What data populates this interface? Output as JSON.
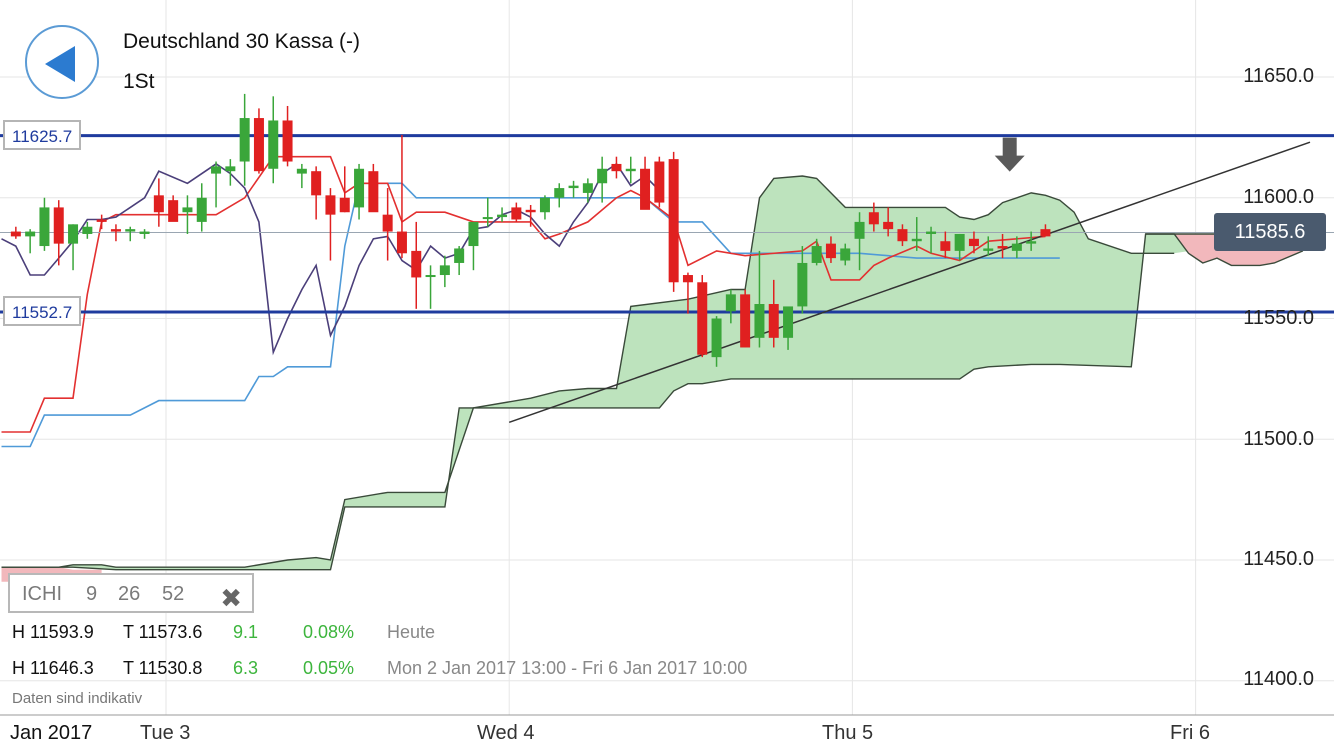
{
  "header": {
    "instrument": "Deutschland 30 Kassa (-)",
    "interval": "1St",
    "back_icon": "back-arrow-icon"
  },
  "levels": {
    "upper_label": "11625.7",
    "lower_label": "11552.7",
    "current_label": "11585.6"
  },
  "indicator": {
    "name": "ICHI",
    "p1": "9",
    "p2": "26",
    "p3": "52",
    "close_icon": "close-icon"
  },
  "stats": {
    "row1": {
      "high": "H 11593.9",
      "low": "T 11573.6",
      "change": "9.1",
      "pct": "0.08%",
      "period": "Heute"
    },
    "row2": {
      "high": "H 11646.3",
      "low": "T 11530.8",
      "change": "6.3",
      "pct": "0.05%",
      "period": "Mon 2 Jan 2017 13:00 - Fri 6 Jan 2017 10:00"
    }
  },
  "disclaimer": "Daten sind indikativ",
  "date_badge": "Jan 2017",
  "colors": {
    "up": "#3aa63a",
    "down": "#e02020",
    "level": "#1f3b9e",
    "cloud_bull": "#bde3bd",
    "cloud_bear": "#f2b8bc",
    "tenkan": "#e33030",
    "kijun": "#4f9ad8",
    "chikou": "#4b3f7a",
    "accent_green": "#3db53d"
  },
  "chart_data": {
    "type": "candlestick",
    "ylim": [
      11390,
      11665
    ],
    "yticks": [
      "11650.0",
      "11600.0",
      "11550.0",
      "11500.0",
      "11450.0",
      "11400.0"
    ],
    "ytick_values": [
      11650,
      11600,
      11550,
      11500,
      11450,
      11400
    ],
    "xticks": [
      "Tue 3",
      "Wed 4",
      "Thu 5",
      "Fri 6"
    ],
    "xtick_hours": [
      9,
      33,
      57,
      81
    ],
    "x_range_hours": [
      -2.5,
      89
    ],
    "x_unit": "hours after Tue 3 00:00",
    "horizontal_levels": [
      11625.7,
      11552.7
    ],
    "current_price": 11585.6,
    "candles": [
      [
        -1.5,
        11586,
        11588,
        11583,
        11584
      ],
      [
        -0.5,
        11584,
        11587,
        11577,
        11586
      ],
      [
        0.5,
        11580,
        11600,
        11578,
        11596
      ],
      [
        1.5,
        11596,
        11599,
        11572,
        11581
      ],
      [
        2.5,
        11581,
        11589,
        11570,
        11589
      ],
      [
        3.5,
        11585,
        11590,
        11583,
        11588
      ],
      [
        4.5,
        11591,
        11593,
        11587,
        11590
      ],
      [
        5.5,
        11587,
        11589,
        11582,
        11586
      ],
      [
        6.5,
        11586,
        11588,
        11582,
        11587
      ],
      [
        7.5,
        11585,
        11587,
        11583,
        11586
      ],
      [
        8.5,
        11601,
        11608,
        11588,
        11594
      ],
      [
        9.5,
        11599,
        11601,
        11591,
        11590
      ],
      [
        10.5,
        11594,
        11601,
        11585,
        11596
      ],
      [
        11.5,
        11590,
        11606,
        11586,
        11600
      ],
      [
        12.5,
        11610,
        11615,
        11596,
        11613
      ],
      [
        13.5,
        11611,
        11616,
        11605,
        11613
      ],
      [
        14.5,
        11615,
        11643,
        11605,
        11633
      ],
      [
        15.5,
        11633,
        11637,
        11610,
        11611
      ],
      [
        16.5,
        11612,
        11642,
        11606,
        11632
      ],
      [
        17.5,
        11632,
        11638,
        11613,
        11615
      ],
      [
        18.5,
        11610,
        11614,
        11604,
        11612
      ],
      [
        19.5,
        11611,
        11613,
        11591,
        11601
      ],
      [
        20.5,
        11601,
        11604,
        11574,
        11593
      ],
      [
        21.5,
        11600,
        11613,
        11594,
        11594
      ],
      [
        22.5,
        11596,
        11614,
        11591,
        11612
      ],
      [
        23.5,
        11611,
        11614,
        11595,
        11594
      ],
      [
        24.5,
        11593,
        11604,
        11574,
        11586
      ],
      [
        25.5,
        11586,
        11626,
        11575,
        11577
      ],
      [
        26.5,
        11578,
        11590,
        11554,
        11567
      ],
      [
        27.5,
        11568,
        11572,
        11554,
        11568
      ],
      [
        28.5,
        11568,
        11576,
        11563,
        11572
      ],
      [
        29.5,
        11573,
        11580,
        11568,
        11579
      ],
      [
        30.5,
        11580,
        11588,
        11570,
        11590
      ],
      [
        31.5,
        11592,
        11600,
        11588,
        11592
      ],
      [
        32.5,
        11592,
        11596,
        11590,
        11593
      ],
      [
        33.5,
        11596,
        11598,
        11590,
        11591
      ],
      [
        34.5,
        11595,
        11597,
        11588,
        11594
      ],
      [
        35.5,
        11594,
        11601,
        11591,
        11600
      ],
      [
        36.5,
        11600,
        11606,
        11596,
        11604
      ],
      [
        37.5,
        11604,
        11607,
        11600,
        11605
      ],
      [
        38.5,
        11602,
        11608,
        11598,
        11606
      ],
      [
        39.5,
        11606,
        11617,
        11598,
        11612
      ],
      [
        40.5,
        11614,
        11617,
        11608,
        11611
      ],
      [
        41.5,
        11611,
        11617,
        11606,
        11612
      ],
      [
        42.5,
        11612,
        11617,
        11597,
        11595
      ],
      [
        43.5,
        11615,
        11617,
        11596,
        11598
      ],
      [
        44.5,
        11616,
        11619,
        11561,
        11565
      ],
      [
        45.5,
        11568,
        11569,
        11552,
        11565
      ],
      [
        46.5,
        11565,
        11568,
        11534,
        11535
      ],
      [
        47.5,
        11534,
        11551,
        11530,
        11550
      ],
      [
        48.5,
        11553,
        11562,
        11548,
        11560
      ],
      [
        49.5,
        11560,
        11562,
        11538,
        11538
      ],
      [
        50.5,
        11542,
        11578,
        11538,
        11556
      ],
      [
        51.5,
        11556,
        11566,
        11538,
        11542
      ],
      [
        52.5,
        11542,
        11553,
        11537,
        11555
      ],
      [
        53.5,
        11555,
        11580,
        11552,
        11573
      ],
      [
        54.5,
        11573,
        11583,
        11572,
        11580
      ],
      [
        55.5,
        11581,
        11584,
        11573,
        11575
      ],
      [
        56.5,
        11574,
        11581,
        11572,
        11579
      ],
      [
        57.5,
        11583,
        11594,
        11570,
        11590
      ],
      [
        58.5,
        11594,
        11598,
        11586,
        11589
      ],
      [
        59.5,
        11590,
        11596,
        11584,
        11587
      ],
      [
        60.5,
        11587,
        11589,
        11580,
        11582
      ],
      [
        61.5,
        11582,
        11592,
        11578,
        11583
      ],
      [
        62.5,
        11585,
        11588,
        11577,
        11586
      ],
      [
        63.5,
        11582,
        11586,
        11575,
        11578
      ],
      [
        64.5,
        11578,
        11585,
        11574,
        11585
      ],
      [
        65.5,
        11583,
        11586,
        11577,
        11580
      ],
      [
        66.5,
        11578,
        11584,
        11576,
        11579
      ],
      [
        67.5,
        11580,
        11585,
        11575,
        11579
      ],
      [
        68.5,
        11578,
        11584,
        11575,
        11581
      ],
      [
        69.5,
        11581,
        11586,
        11578,
        11582
      ],
      [
        70.5,
        11587,
        11589,
        11584,
        11584
      ]
    ],
    "tenkan": [
      [
        -2.5,
        11503
      ],
      [
        -0.5,
        11503
      ],
      [
        0.5,
        11517
      ],
      [
        2.5,
        11517
      ],
      [
        3.5,
        11560
      ],
      [
        4.5,
        11590
      ],
      [
        5.5,
        11593
      ],
      [
        6.5,
        11593
      ],
      [
        12.5,
        11593
      ],
      [
        14.5,
        11600
      ],
      [
        16.5,
        11617
      ],
      [
        20.5,
        11617
      ],
      [
        21.5,
        11602
      ],
      [
        22.5,
        11606
      ],
      [
        24.5,
        11606
      ],
      [
        25.5,
        11590
      ],
      [
        26.5,
        11594
      ],
      [
        28.5,
        11594
      ],
      [
        30.5,
        11590
      ],
      [
        34.5,
        11590
      ],
      [
        35.5,
        11583
      ],
      [
        36.5,
        11585
      ],
      [
        38.5,
        11590
      ],
      [
        40.5,
        11600
      ],
      [
        41.5,
        11603
      ],
      [
        42.5,
        11600
      ],
      [
        44.5,
        11591
      ],
      [
        45.5,
        11572
      ],
      [
        47.5,
        11578
      ],
      [
        49.5,
        11576
      ],
      [
        53.5,
        11578
      ],
      [
        54.5,
        11582
      ],
      [
        55.5,
        11566
      ],
      [
        57.5,
        11566
      ],
      [
        58.5,
        11572
      ],
      [
        59.5,
        11575
      ],
      [
        61.5,
        11580
      ],
      [
        62.5,
        11577
      ],
      [
        64.5,
        11574
      ],
      [
        66.5,
        11582
      ],
      [
        70.5,
        11584
      ]
    ],
    "kijun": [
      [
        -2.5,
        11497
      ],
      [
        -0.5,
        11497
      ],
      [
        0.5,
        11510
      ],
      [
        6.5,
        11510
      ],
      [
        8.5,
        11516
      ],
      [
        14.5,
        11516
      ],
      [
        15.5,
        11526
      ],
      [
        16.5,
        11526
      ],
      [
        17.5,
        11530
      ],
      [
        20.5,
        11530
      ],
      [
        21.5,
        11580
      ],
      [
        22.5,
        11606
      ],
      [
        25.5,
        11606
      ],
      [
        26.5,
        11600
      ],
      [
        37.5,
        11600
      ],
      [
        40.5,
        11600
      ],
      [
        41.5,
        11600
      ],
      [
        42.5,
        11600
      ],
      [
        44.5,
        11590
      ],
      [
        46.5,
        11590
      ],
      [
        48.5,
        11577
      ],
      [
        53.5,
        11577
      ],
      [
        57.5,
        11577
      ],
      [
        61.5,
        11575
      ],
      [
        71.5,
        11575
      ]
    ],
    "chikou": [
      [
        -2.5,
        11583
      ],
      [
        -1.5,
        11580
      ],
      [
        -0.5,
        11568
      ],
      [
        0.5,
        11568
      ],
      [
        1.5,
        11575
      ],
      [
        2.5,
        11582
      ],
      [
        3.5,
        11591
      ],
      [
        4.5,
        11591
      ],
      [
        5.5,
        11592
      ],
      [
        6.5,
        11596
      ],
      [
        7.5,
        11600
      ],
      [
        8.5,
        11611
      ],
      [
        10.5,
        11606
      ],
      [
        12.5,
        11614
      ],
      [
        13.5,
        11610
      ],
      [
        14.5,
        11604
      ],
      [
        15.5,
        11590
      ],
      [
        16.5,
        11536
      ],
      [
        17.5,
        11550
      ],
      [
        18.5,
        11562
      ],
      [
        19.5,
        11572
      ],
      [
        20.5,
        11543
      ],
      [
        21.5,
        11555
      ],
      [
        22.5,
        11572
      ],
      [
        23.5,
        11583
      ],
      [
        24.5,
        11584
      ],
      [
        25.5,
        11574
      ],
      [
        26.5,
        11570
      ],
      [
        27.5,
        11580
      ],
      [
        28.5,
        11575
      ],
      [
        29.5,
        11577
      ],
      [
        30.5,
        11587
      ],
      [
        31.5,
        11588
      ],
      [
        32.5,
        11593
      ],
      [
        33.5,
        11595
      ],
      [
        34.5,
        11592
      ],
      [
        35.5,
        11585
      ],
      [
        36.5,
        11580
      ],
      [
        37.5,
        11590
      ],
      [
        38.5,
        11598
      ],
      [
        39.5,
        11610
      ],
      [
        40.5,
        11614
      ],
      [
        41.5,
        11605
      ],
      [
        42.5,
        11609
      ],
      [
        43.5,
        11603
      ]
    ],
    "cloud_span_a": [
      [
        -2.5,
        11447
      ],
      [
        1.5,
        11447
      ],
      [
        2.5,
        11448
      ],
      [
        4.5,
        11448
      ],
      [
        5.5,
        11447
      ],
      [
        14.5,
        11447
      ],
      [
        17.5,
        11450
      ],
      [
        19.5,
        11451
      ],
      [
        20.5,
        11450
      ],
      [
        21.5,
        11475
      ],
      [
        24.5,
        11478
      ],
      [
        28.5,
        11478
      ],
      [
        30.5,
        11513
      ],
      [
        34.5,
        11517
      ],
      [
        36.5,
        11520
      ],
      [
        38.5,
        11521
      ],
      [
        40.5,
        11521
      ],
      [
        41.5,
        11555
      ],
      [
        45.5,
        11558
      ],
      [
        48.5,
        11562
      ],
      [
        49.5,
        11562
      ],
      [
        50.5,
        11600
      ],
      [
        51.5,
        11608
      ],
      [
        53.5,
        11609
      ],
      [
        54.5,
        11608
      ],
      [
        56.5,
        11596
      ],
      [
        60.5,
        11596
      ],
      [
        63.5,
        11596
      ],
      [
        64.5,
        11592
      ],
      [
        65.5,
        11591
      ],
      [
        66.5,
        11593
      ],
      [
        67.5,
        11598
      ],
      [
        68.5,
        11600
      ],
      [
        69.5,
        11602
      ],
      [
        70.5,
        11601
      ],
      [
        71.5,
        11599
      ],
      [
        72.5,
        11594
      ],
      [
        73.5,
        11583
      ],
      [
        76.5,
        11577
      ],
      [
        79.5,
        11577
      ]
    ],
    "cloud_span_b": [
      [
        -2.5,
        11447
      ],
      [
        2.5,
        11447
      ],
      [
        5.5,
        11446
      ],
      [
        14.5,
        11446
      ],
      [
        17.5,
        11446
      ],
      [
        20.5,
        11446
      ],
      [
        21.5,
        11472
      ],
      [
        23.5,
        11472
      ],
      [
        28.5,
        11472
      ],
      [
        29.5,
        11513
      ],
      [
        30.5,
        11513
      ],
      [
        32.5,
        11513
      ],
      [
        36.5,
        11513
      ],
      [
        40.5,
        11513
      ],
      [
        41.5,
        11513
      ],
      [
        43.5,
        11513
      ],
      [
        44.5,
        11520
      ],
      [
        45.5,
        11523
      ],
      [
        46.5,
        11523
      ],
      [
        48.5,
        11525
      ],
      [
        51.5,
        11525
      ],
      [
        53.5,
        11525
      ],
      [
        55.5,
        11525
      ],
      [
        57.5,
        11525
      ],
      [
        60.5,
        11525
      ],
      [
        63.5,
        11525
      ],
      [
        64.5,
        11525
      ],
      [
        65.5,
        11529
      ],
      [
        66.5,
        11530
      ],
      [
        69.5,
        11531
      ],
      [
        71.5,
        11531
      ],
      [
        76.5,
        11530
      ],
      [
        77.5,
        11585
      ],
      [
        79.5,
        11585
      ],
      [
        81.5,
        11585
      ],
      [
        82.5,
        11585
      ],
      [
        85.5,
        11585
      ],
      [
        88.5,
        11585
      ]
    ],
    "cloud_red_a": [
      [
        77.5,
        11585
      ],
      [
        79.5,
        11585
      ],
      [
        80.5,
        11577
      ],
      [
        81.5,
        11573
      ],
      [
        82.5,
        11575
      ],
      [
        83.5,
        11572
      ],
      [
        85.5,
        11572
      ],
      [
        86.5,
        11573
      ],
      [
        88.5,
        11578
      ]
    ],
    "trendline": [
      [
        33,
        11507
      ],
      [
        89,
        11623
      ]
    ],
    "marker_arrow": {
      "x": 68,
      "y": 11610,
      "icon": "down-arrow-icon"
    }
  }
}
